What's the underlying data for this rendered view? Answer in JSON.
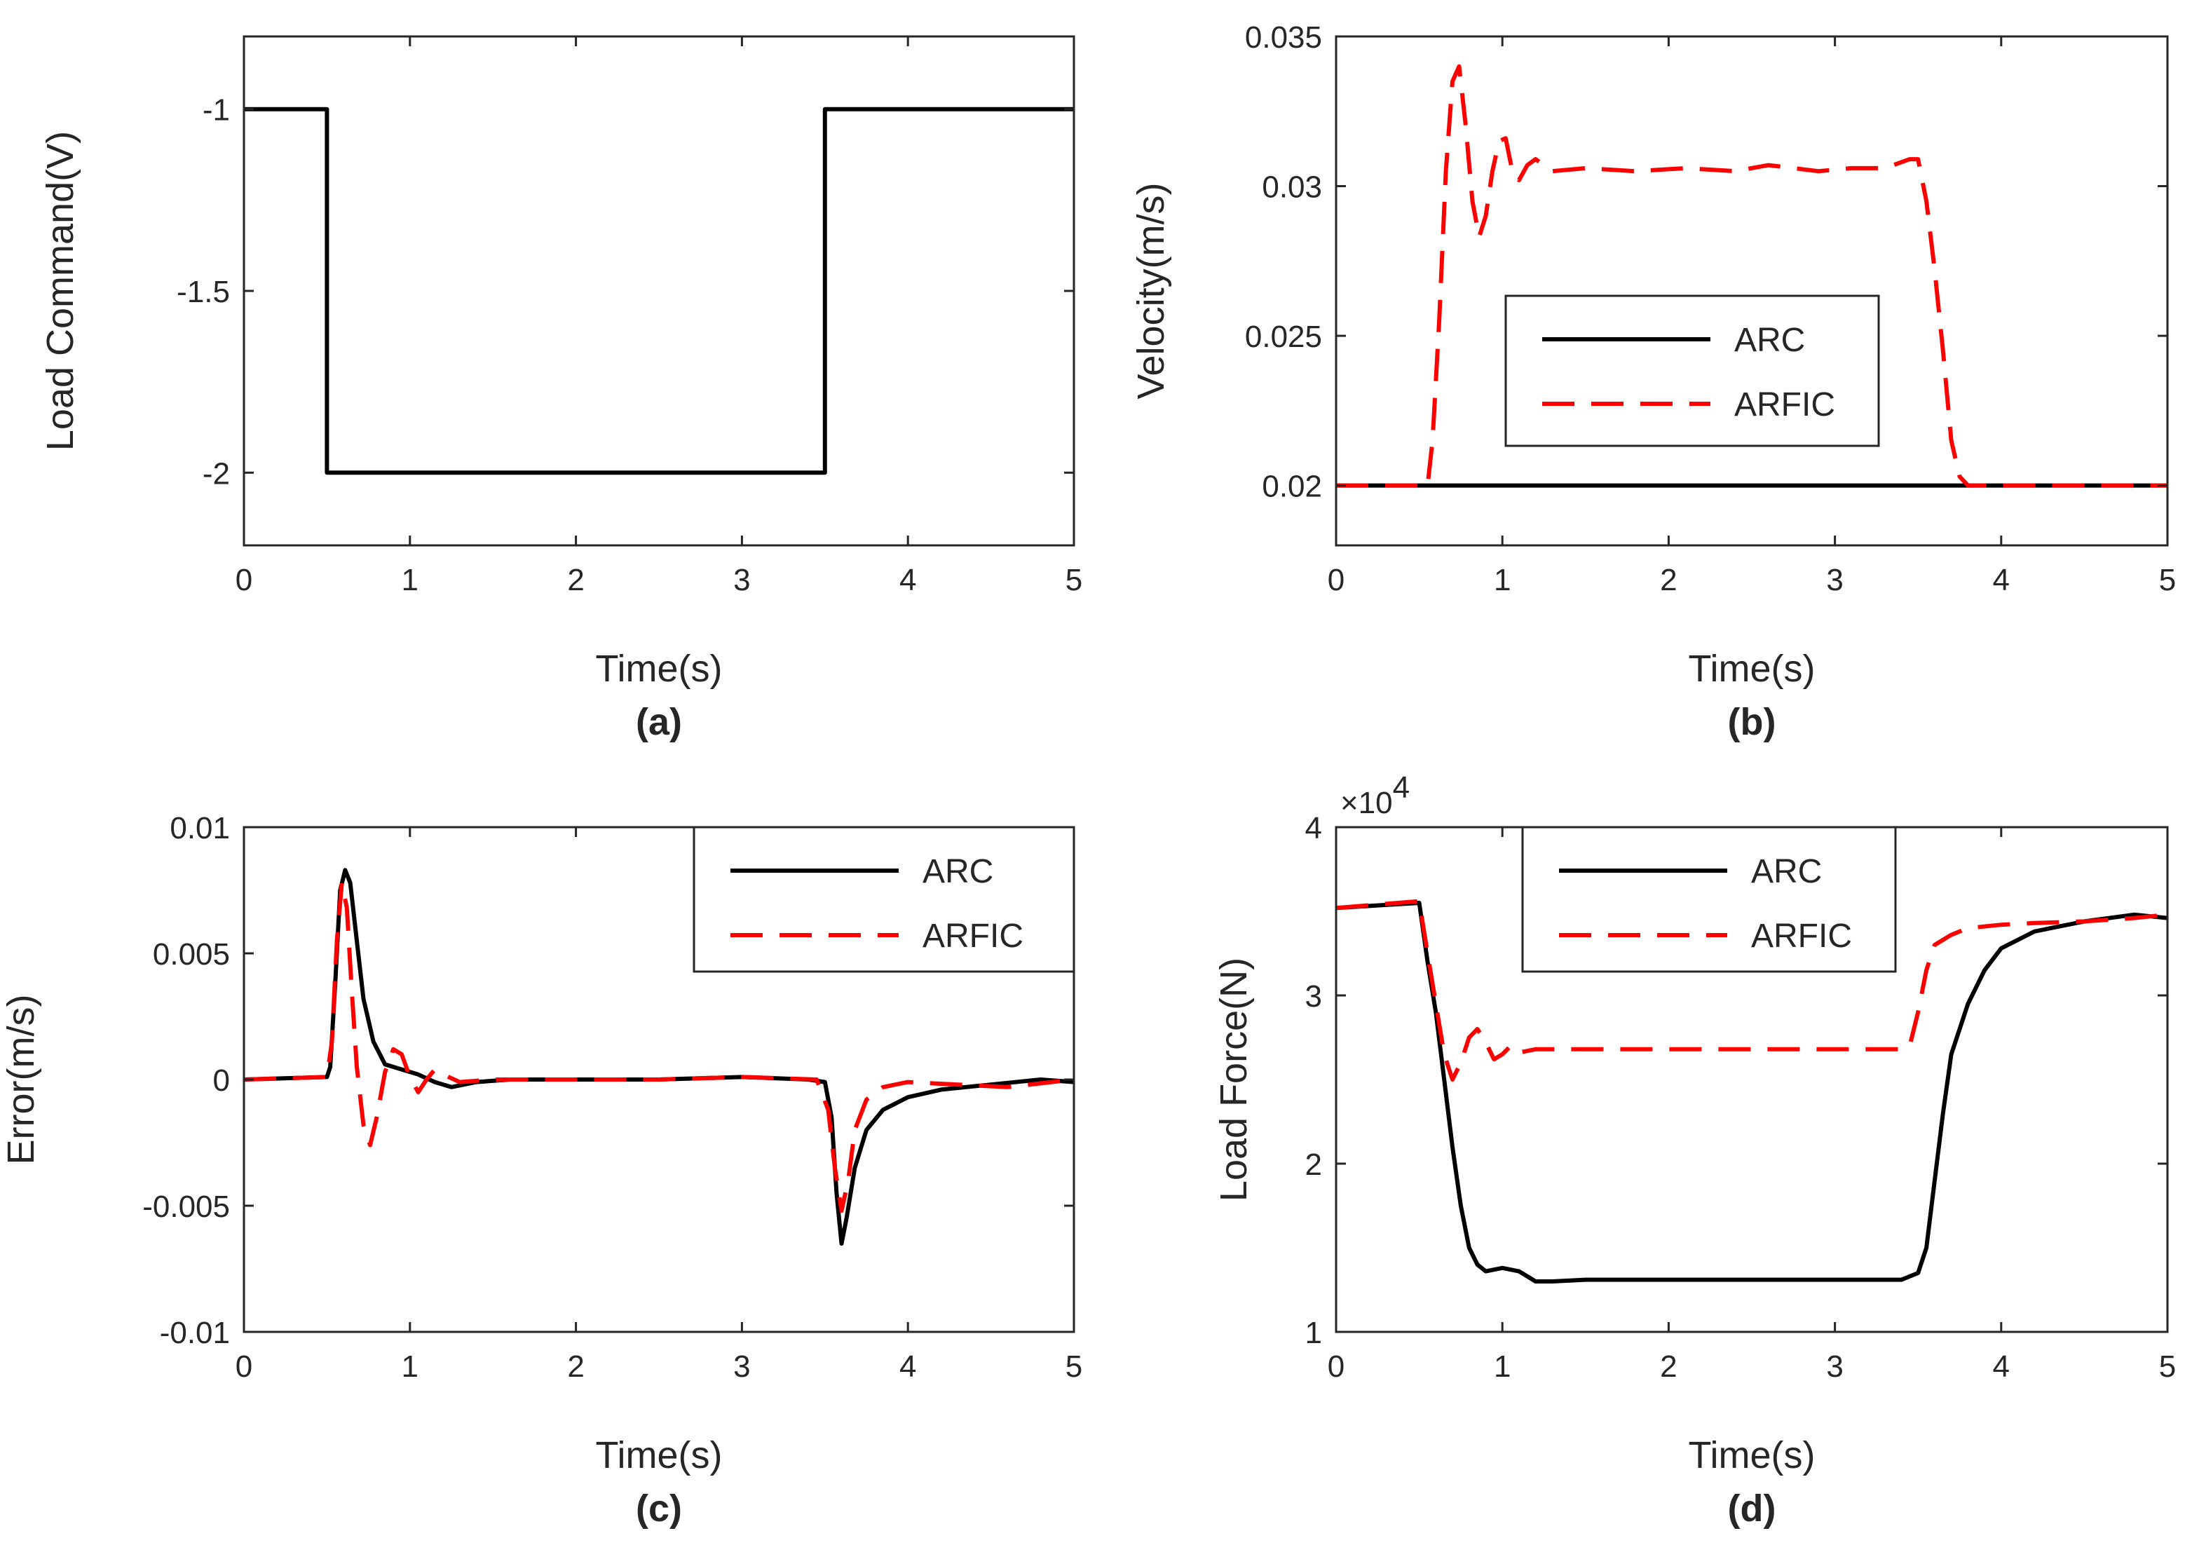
{
  "colors": {
    "arc": "#000000",
    "arfic": "#ff0000",
    "axis": "#262626",
    "background": "#ffffff"
  },
  "chart_data": [
    {
      "id": "a",
      "type": "line",
      "caption": "(a)",
      "xlabel": "Time(s)",
      "ylabel": "Load Command(V)",
      "xlim": [
        0,
        5
      ],
      "ylim": [
        -2.2,
        -0.8
      ],
      "xticks": [
        0,
        1,
        2,
        3,
        4,
        5
      ],
      "xtick_labels": [
        "0",
        "1",
        "2",
        "3",
        "4",
        "5"
      ],
      "yticks": [
        -2,
        -1.5,
        -1
      ],
      "ytick_labels": [
        "-2",
        "-1.5",
        "-1"
      ],
      "grid": false,
      "legend": null,
      "series": [
        {
          "color": "#000000",
          "dash": "solid",
          "x": [
            0,
            0.5,
            0.5,
            3.5,
            3.5,
            5
          ],
          "y": [
            -1,
            -1,
            -2,
            -2,
            -1,
            -1
          ]
        }
      ]
    },
    {
      "id": "b",
      "type": "line",
      "caption": "(b)",
      "xlabel": "Time(s)",
      "ylabel": "Velocity(m/s)",
      "xlim": [
        0,
        5
      ],
      "ylim": [
        0.018,
        0.035
      ],
      "xticks": [
        0,
        1,
        2,
        3,
        4,
        5
      ],
      "xtick_labels": [
        "0",
        "1",
        "2",
        "3",
        "4",
        "5"
      ],
      "yticks": [
        0.02,
        0.025,
        0.03,
        0.035
      ],
      "ytick_labels": [
        "0.02",
        "0.025",
        "0.03",
        "0.035"
      ],
      "grid": false,
      "legend": {
        "position": "center"
      },
      "series": [
        {
          "name": "ARC",
          "color": "#000000",
          "dash": "solid",
          "x": [
            0,
            5
          ],
          "y": [
            0.02,
            0.02
          ]
        },
        {
          "name": "ARFIC",
          "color": "#ff0000",
          "dash": "dashed",
          "x": [
            0,
            0.55,
            0.58,
            0.62,
            0.66,
            0.7,
            0.74,
            0.78,
            0.82,
            0.86,
            0.9,
            0.94,
            0.98,
            1.02,
            1.06,
            1.1,
            1.15,
            1.2,
            1.3,
            1.5,
            1.8,
            2.1,
            2.4,
            2.6,
            2.9,
            3.1,
            3.3,
            3.45,
            3.5,
            3.55,
            3.6,
            3.65,
            3.7,
            3.75,
            3.8,
            3.9,
            5
          ],
          "y": [
            0.02,
            0.02,
            0.0215,
            0.0255,
            0.0305,
            0.0335,
            0.034,
            0.032,
            0.0295,
            0.0283,
            0.029,
            0.0305,
            0.0315,
            0.0316,
            0.0305,
            0.0302,
            0.0307,
            0.0309,
            0.0305,
            0.0306,
            0.0305,
            0.0306,
            0.0305,
            0.0307,
            0.0305,
            0.0306,
            0.0306,
            0.0309,
            0.0309,
            0.0295,
            0.0272,
            0.0245,
            0.0215,
            0.0203,
            0.02,
            0.02,
            0.02
          ]
        }
      ]
    },
    {
      "id": "c",
      "type": "line",
      "caption": "(c)",
      "xlabel": "Time(s)",
      "ylabel": "Error(m/s)",
      "xlim": [
        0,
        5
      ],
      "ylim": [
        -0.01,
        0.01
      ],
      "xticks": [
        0,
        1,
        2,
        3,
        4,
        5
      ],
      "xtick_labels": [
        "0",
        "1",
        "2",
        "3",
        "4",
        "5"
      ],
      "yticks": [
        -0.01,
        -0.005,
        0,
        0.005,
        0.01
      ],
      "ytick_labels": [
        "-0.01",
        "-0.005",
        "0",
        "0.005",
        "0.01"
      ],
      "grid": false,
      "legend": {
        "position": "top-right"
      },
      "series": [
        {
          "name": "ARC",
          "color": "#000000",
          "dash": "solid",
          "x": [
            0,
            0.5,
            0.52,
            0.55,
            0.58,
            0.61,
            0.64,
            0.68,
            0.72,
            0.78,
            0.85,
            0.95,
            1.05,
            1.15,
            1.25,
            1.4,
            1.6,
            2,
            2.5,
            3,
            3.4,
            3.5,
            3.54,
            3.57,
            3.6,
            3.63,
            3.68,
            3.75,
            3.85,
            4.0,
            4.2,
            4.5,
            4.8,
            5
          ],
          "y": [
            0,
            0.0001,
            0.0005,
            0.0038,
            0.0075,
            0.0083,
            0.0078,
            0.0055,
            0.0032,
            0.0015,
            0.0006,
            0.0004,
            0.0002,
            -0.0001,
            -0.0003,
            -0.0001,
            0,
            0,
            0,
            0.0001,
            0,
            -0.0001,
            -0.0015,
            -0.0045,
            -0.0065,
            -0.0055,
            -0.0035,
            -0.002,
            -0.0012,
            -0.0007,
            -0.0004,
            -0.0002,
            0,
            -0.0001
          ]
        },
        {
          "name": "ARFIC",
          "color": "#ff0000",
          "dash": "dashed",
          "x": [
            0,
            0.5,
            0.53,
            0.56,
            0.59,
            0.62,
            0.65,
            0.68,
            0.72,
            0.76,
            0.8,
            0.85,
            0.9,
            0.95,
            1.0,
            1.05,
            1.1,
            1.15,
            1.2,
            1.3,
            1.5,
            2,
            2.5,
            3,
            3.45,
            3.52,
            3.56,
            3.6,
            3.64,
            3.68,
            3.75,
            3.85,
            4.0,
            4.3,
            4.6,
            5
          ],
          "y": [
            0,
            0.0001,
            0.0015,
            0.0055,
            0.0078,
            0.0068,
            0.0035,
            0.0005,
            -0.0018,
            -0.0026,
            -0.0015,
            0.0003,
            0.0012,
            0.001,
            0.0001,
            -0.0005,
            0,
            0.0004,
            0.0002,
            -0.0001,
            0,
            0,
            0,
            0.0001,
            0,
            -0.0012,
            -0.0035,
            -0.0052,
            -0.004,
            -0.002,
            -0.0008,
            -0.0003,
            -0.0001,
            -0.0002,
            -0.0003,
            0
          ]
        }
      ]
    },
    {
      "id": "d",
      "type": "line",
      "caption": "(d)",
      "xlabel": "Time(s)",
      "ylabel": "Load Force(N)",
      "yscale_label": "×10",
      "yscale_exponent": "4",
      "xlim": [
        0,
        5
      ],
      "ylim": [
        1,
        4
      ],
      "xticks": [
        0,
        1,
        2,
        3,
        4,
        5
      ],
      "xtick_labels": [
        "0",
        "1",
        "2",
        "3",
        "4",
        "5"
      ],
      "yticks": [
        1,
        2,
        3,
        4
      ],
      "ytick_labels": [
        "1",
        "2",
        "3",
        "4"
      ],
      "grid": false,
      "legend": {
        "position": "top-center"
      },
      "series": [
        {
          "name": "ARC",
          "color": "#000000",
          "dash": "solid",
          "x": [
            0,
            0.5,
            0.55,
            0.6,
            0.65,
            0.7,
            0.75,
            0.8,
            0.85,
            0.9,
            0.95,
            1.0,
            1.1,
            1.2,
            1.3,
            1.5,
            2,
            2.5,
            3,
            3.4,
            3.5,
            3.55,
            3.6,
            3.65,
            3.7,
            3.8,
            3.9,
            4.0,
            4.2,
            4.5,
            4.8,
            5
          ],
          "y": [
            3.52,
            3.55,
            3.2,
            2.9,
            2.5,
            2.1,
            1.75,
            1.5,
            1.4,
            1.36,
            1.37,
            1.38,
            1.36,
            1.3,
            1.3,
            1.31,
            1.31,
            1.31,
            1.31,
            1.31,
            1.35,
            1.5,
            1.9,
            2.3,
            2.65,
            2.95,
            3.15,
            3.28,
            3.38,
            3.44,
            3.48,
            3.46
          ]
        },
        {
          "name": "ARFIC",
          "color": "#ff0000",
          "dash": "dashed",
          "x": [
            0,
            0.5,
            0.55,
            0.6,
            0.65,
            0.7,
            0.75,
            0.8,
            0.85,
            0.9,
            0.95,
            1.0,
            1.05,
            1.1,
            1.2,
            1.4,
            1.8,
            2.2,
            2.6,
            3.0,
            3.4,
            3.45,
            3.5,
            3.55,
            3.6,
            3.7,
            3.8,
            4.0,
            4.2,
            4.5,
            4.8,
            5
          ],
          "y": [
            3.52,
            3.56,
            3.25,
            2.95,
            2.65,
            2.5,
            2.6,
            2.75,
            2.8,
            2.72,
            2.62,
            2.65,
            2.7,
            2.66,
            2.68,
            2.68,
            2.68,
            2.68,
            2.68,
            2.68,
            2.68,
            2.7,
            2.9,
            3.15,
            3.3,
            3.36,
            3.4,
            3.42,
            3.43,
            3.44,
            3.46,
            3.48
          ]
        }
      ]
    }
  ]
}
